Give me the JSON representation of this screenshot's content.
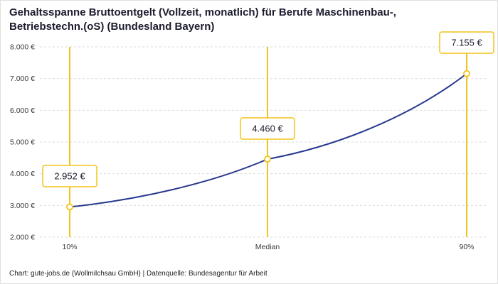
{
  "title": "Gehaltsspanne Bruttoentgelt (Vollzeit, monatlich) für Berufe Maschinenbau-, Betriebstechn.(oS) (Bundesland Bayern)",
  "footer": "Chart: gute-jobs.de (Wollmilchsau GmbH) | Datenquelle: Bundesagentur für Arbeit",
  "colors": {
    "accent_yellow": "#F2C318",
    "line_blue": "#28398F",
    "grid": "#DCDCDC",
    "axis_text": "#3A3A3A",
    "text": "#1C1C2E",
    "background": "#FFFFFF"
  },
  "chart_data": {
    "type": "line",
    "title": "Gehaltsspanne Bruttoentgelt (Vollzeit, monatlich) für Berufe Maschinenbau-, Betriebstechn.(oS) (Bundesland Bayern)",
    "categories": [
      "10%",
      "Median",
      "90%"
    ],
    "values": [
      2952,
      4460,
      7155
    ],
    "points": [
      {
        "category": "10%",
        "value": 2952,
        "label": "2.952 €"
      },
      {
        "category": "Median",
        "value": 4460,
        "label": "4.460 €"
      },
      {
        "category": "90%",
        "value": 7155,
        "label": "7.155 €"
      }
    ],
    "xlabel": "",
    "ylabel": "",
    "ylim": [
      2000,
      8000
    ],
    "y_tick_values": [
      2000,
      3000,
      4000,
      5000,
      6000,
      7000,
      8000
    ],
    "y_tick_labels": [
      "2.000 €",
      "3.000 €",
      "4.000 €",
      "5.000 €",
      "6.000 €",
      "7.000 €",
      "8.000 €"
    ],
    "grid": "dashed-horizontal",
    "legend": "none",
    "marker_style": "open-circle-yellow",
    "vertical_guides_at_categories": true
  }
}
